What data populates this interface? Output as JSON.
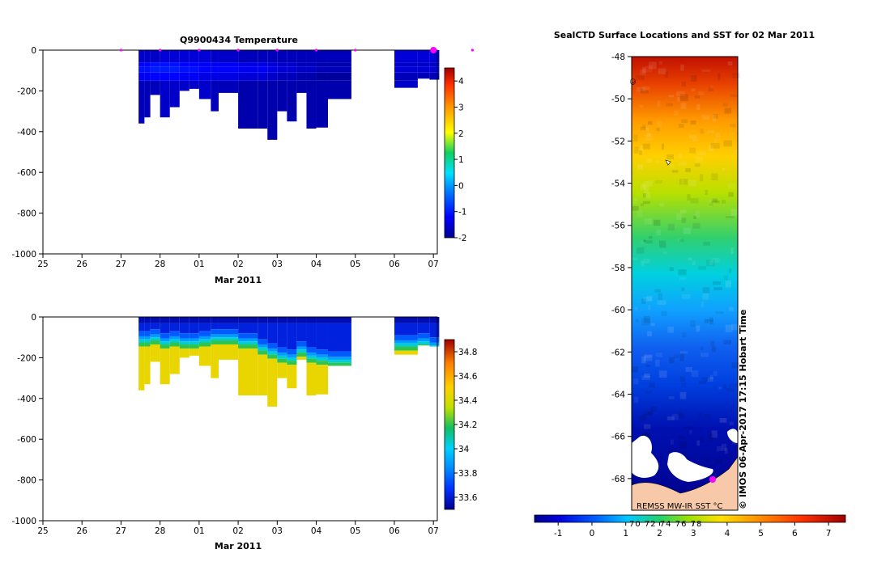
{
  "chart_data": [
    {
      "type": "heatmap",
      "title": "Q9900434  Temperature",
      "xlabel": "Mar 2011",
      "ylabel": "",
      "x_ticks": [
        "25",
        "26",
        "27",
        "28",
        "01",
        "02",
        "03",
        "04",
        "05",
        "06",
        "07"
      ],
      "y_ticks": [
        "0",
        "-200",
        "-400",
        "-600",
        "-800",
        "-1000"
      ],
      "ylim": [
        -1000,
        0
      ],
      "colorbar_ticks": [
        "4",
        "3",
        "2",
        "1",
        "0",
        "-1",
        "-2"
      ],
      "colorbar_range": [
        -2,
        4.5
      ],
      "profile_days": [
        27.0,
        28.0,
        29.0,
        30.0,
        31.0,
        32.0,
        33.0,
        35.0,
        36.0
      ],
      "profiles": [
        {
          "start": 27.45,
          "end": 27.6,
          "max_depth": -360,
          "surface": -1.7,
          "core": -1.1
        },
        {
          "start": 27.6,
          "end": 27.75,
          "max_depth": -330,
          "surface": -1.7,
          "core": -1.1
        },
        {
          "start": 27.75,
          "end": 28.0,
          "max_depth": -220,
          "surface": -1.7,
          "core": -1.0
        },
        {
          "start": 28.0,
          "end": 28.25,
          "max_depth": -330,
          "surface": -1.6,
          "core": -1.0
        },
        {
          "start": 28.25,
          "end": 28.5,
          "max_depth": -280,
          "surface": -1.6,
          "core": -1.0
        },
        {
          "start": 28.5,
          "end": 28.75,
          "max_depth": -200,
          "surface": -1.6,
          "core": -1.1
        },
        {
          "start": 28.75,
          "end": 29.0,
          "max_depth": -190,
          "surface": -1.6,
          "core": -1.1
        },
        {
          "start": 29.0,
          "end": 29.3,
          "max_depth": -240,
          "surface": -1.6,
          "core": -1.2
        },
        {
          "start": 29.3,
          "end": 29.5,
          "max_depth": -300,
          "surface": -1.7,
          "core": -1.2
        },
        {
          "start": 29.5,
          "end": 30.0,
          "max_depth": -210,
          "surface": -1.7,
          "core": -1.2
        },
        {
          "start": 30.0,
          "end": 30.5,
          "max_depth": -385,
          "surface": -1.8,
          "core": -1.3
        },
        {
          "start": 30.5,
          "end": 30.75,
          "max_depth": -385,
          "surface": -1.8,
          "core": -1.3
        },
        {
          "start": 30.75,
          "end": 31.0,
          "max_depth": -440,
          "surface": -1.8,
          "core": -1.4
        },
        {
          "start": 31.0,
          "end": 31.25,
          "max_depth": -300,
          "surface": -1.8,
          "core": -1.5
        },
        {
          "start": 31.25,
          "end": 31.5,
          "max_depth": -350,
          "surface": -1.8,
          "core": -1.5
        },
        {
          "start": 31.5,
          "end": 31.75,
          "max_depth": -210,
          "surface": -1.8,
          "core": -1.6
        },
        {
          "start": 31.75,
          "end": 32.0,
          "max_depth": -385,
          "surface": -1.8,
          "core": -1.6
        },
        {
          "start": 32.0,
          "end": 32.3,
          "max_depth": -380,
          "surface": -1.8,
          "core": -1.7
        },
        {
          "start": 32.3,
          "end": 32.9,
          "max_depth": -240,
          "surface": -1.8,
          "core": -1.7
        },
        {
          "start": 34.0,
          "end": 34.6,
          "max_depth": -185,
          "surface": -1.6,
          "core": -1.5
        },
        {
          "start": 34.6,
          "end": 34.9,
          "max_depth": -140,
          "surface": -1.6,
          "core": -1.5
        },
        {
          "start": 34.9,
          "end": 35.15,
          "max_depth": -145,
          "surface": -1.6,
          "core": -1.5
        }
      ]
    },
    {
      "type": "heatmap",
      "title": "",
      "xlabel": "Mar 2011",
      "ylabel": "",
      "x_ticks": [
        "25",
        "26",
        "27",
        "28",
        "01",
        "02",
        "03",
        "04",
        "05",
        "06",
        "07"
      ],
      "y_ticks": [
        "0",
        "-200",
        "-400",
        "-600",
        "-800",
        "-1000"
      ],
      "ylim": [
        -1000,
        0
      ],
      "colorbar_ticks": [
        "34.8",
        "34.6",
        "34.4",
        "34.2",
        "34",
        "33.8",
        "33.6"
      ],
      "colorbar_range": [
        33.5,
        34.9
      ],
      "profiles": [
        {
          "start": 27.45,
          "end": 27.6,
          "max_depth": -360,
          "halocline": -110
        },
        {
          "start": 27.6,
          "end": 27.75,
          "max_depth": -330,
          "halocline": -110
        },
        {
          "start": 27.75,
          "end": 28.0,
          "max_depth": -220,
          "halocline": -100
        },
        {
          "start": 28.0,
          "end": 28.25,
          "max_depth": -330,
          "halocline": -120
        },
        {
          "start": 28.25,
          "end": 28.5,
          "max_depth": -280,
          "halocline": -110
        },
        {
          "start": 28.5,
          "end": 28.75,
          "max_depth": -200,
          "halocline": -120
        },
        {
          "start": 28.75,
          "end": 29.0,
          "max_depth": -190,
          "halocline": -120
        },
        {
          "start": 29.0,
          "end": 29.3,
          "max_depth": -240,
          "halocline": -110
        },
        {
          "start": 29.3,
          "end": 29.5,
          "max_depth": -300,
          "halocline": -100
        },
        {
          "start": 29.5,
          "end": 30.0,
          "max_depth": -210,
          "halocline": -100
        },
        {
          "start": 30.0,
          "end": 30.5,
          "max_depth": -385,
          "halocline": -120
        },
        {
          "start": 30.5,
          "end": 30.75,
          "max_depth": -385,
          "halocline": -150
        },
        {
          "start": 30.75,
          "end": 31.0,
          "max_depth": -440,
          "halocline": -170
        },
        {
          "start": 31.0,
          "end": 31.25,
          "max_depth": -300,
          "halocline": -190
        },
        {
          "start": 31.25,
          "end": 31.5,
          "max_depth": -350,
          "halocline": -200
        },
        {
          "start": 31.5,
          "end": 31.75,
          "max_depth": -210,
          "halocline": -160
        },
        {
          "start": 31.75,
          "end": 32.0,
          "max_depth": -385,
          "halocline": -190
        },
        {
          "start": 32.0,
          "end": 32.3,
          "max_depth": -380,
          "halocline": -200
        },
        {
          "start": 32.3,
          "end": 32.9,
          "max_depth": -240,
          "halocline": -210
        },
        {
          "start": 34.0,
          "end": 34.6,
          "max_depth": -185,
          "halocline": -130
        },
        {
          "start": 34.6,
          "end": 34.9,
          "max_depth": -140,
          "halocline": -120
        },
        {
          "start": 34.9,
          "end": 35.15,
          "max_depth": -145,
          "halocline": -140
        }
      ]
    },
    {
      "type": "heatmap",
      "title": "SealCTD Surface Locations and SST for 02 Mar 2011",
      "xlabel": "",
      "ylabel": "",
      "y_ticks": [
        "-48",
        "-50",
        "-52",
        "-54",
        "-56",
        "-58",
        "-60",
        "-62",
        "-64",
        "-66",
        "-68"
      ],
      "ylim": [
        -69.5,
        -48
      ],
      "colorbar_ticks": [
        "-1",
        "0",
        "1",
        "2",
        "3",
        "4",
        "5",
        "6",
        "7"
      ],
      "colorbar_range": [
        -1.7,
        7.5
      ],
      "colorbar_overlay_text": "70  72  74  76  78",
      "credit": "© IMOS 06-Apr-2017 17:15 Hobart Time",
      "source_label": "REMSS MW-IR SST °C",
      "corner_mark": "©",
      "seal_location": {
        "lat": -68.5,
        "lon_frac": 0.75
      }
    }
  ],
  "colors": {
    "marker": "#ff00ff",
    "land_fill": "#f7c9a8"
  }
}
